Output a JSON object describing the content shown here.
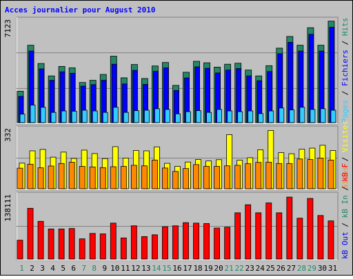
{
  "title": "Acces journalier pour August 2010",
  "colors": {
    "background": "#c0c0c0",
    "border": "#000000",
    "title": "#0000ff",
    "hits": "#228866",
    "files": "#0000ff",
    "pages": "#33ccff",
    "visits": "#ffff00",
    "sites": "#ff8800",
    "kbin": "#228866",
    "kbout": "#0000ff",
    "kbf": "#ff0000",
    "weekday": "#000000",
    "weekend": "#228866",
    "grid": "#808080"
  },
  "chart_data": [
    {
      "type": "bar",
      "panel": "hits",
      "ymax_label": "7123",
      "ymax": 7123,
      "side_labels": [
        {
          "text": "Hits",
          "color": "#228866"
        },
        {
          "text": "Fichiers",
          "color": "#0000ff"
        },
        {
          "text": "Pages",
          "color": "#33ccff"
        }
      ],
      "x": [
        "1",
        "2",
        "3",
        "4",
        "5",
        "6",
        "7",
        "8",
        "9",
        "10",
        "11",
        "12",
        "13",
        "14",
        "15",
        "16",
        "17",
        "18",
        "19",
        "20",
        "21",
        "22",
        "23",
        "24",
        "25",
        "26",
        "27",
        "28",
        "29",
        "30",
        "31"
      ],
      "weekend_days": [
        "1",
        "7",
        "8",
        "14",
        "15",
        "21",
        "22",
        "28",
        "29"
      ],
      "series": [
        {
          "name": "Hits",
          "color": "#228866",
          "values": [
            2150,
            5300,
            4050,
            3200,
            3850,
            3750,
            2750,
            2900,
            3300,
            4550,
            3070,
            3980,
            3020,
            3880,
            4120,
            2550,
            3450,
            4200,
            4100,
            3800,
            4000,
            4070,
            3600,
            3200,
            3900,
            5100,
            5900,
            5300,
            6500,
            5300,
            6950
          ]
        },
        {
          "name": "Fichiers",
          "color": "#0000ff",
          "values": [
            1800,
            4900,
            3680,
            2900,
            3480,
            3380,
            2500,
            2600,
            2900,
            4000,
            2650,
            3580,
            2620,
            3510,
            3750,
            2200,
            3060,
            3820,
            3720,
            3400,
            3600,
            3700,
            3200,
            2870,
            3500,
            4720,
            5500,
            4900,
            6050,
            4900,
            6530
          ]
        },
        {
          "name": "Pages",
          "color": "#33ccff",
          "values": [
            580,
            1200,
            1050,
            700,
            800,
            780,
            850,
            800,
            700,
            1050,
            700,
            820,
            850,
            950,
            900,
            600,
            750,
            820,
            700,
            900,
            800,
            750,
            800,
            620,
            800,
            1000,
            870,
            1050,
            900,
            950,
            850
          ]
        }
      ]
    },
    {
      "type": "bar",
      "panel": "visits",
      "ymax_label": "332",
      "ymax": 332,
      "side_labels": [
        {
          "text": "Visites",
          "color": "#ffff00"
        },
        {
          "text": "Sites",
          "color": "#ff8800"
        }
      ],
      "x": [
        "1",
        "2",
        "3",
        "4",
        "5",
        "6",
        "7",
        "8",
        "9",
        "10",
        "11",
        "12",
        "13",
        "14",
        "15",
        "16",
        "17",
        "18",
        "19",
        "20",
        "21",
        "22",
        "23",
        "24",
        "25",
        "26",
        "27",
        "28",
        "29",
        "30",
        "31"
      ],
      "series": [
        {
          "name": "Visites",
          "color": "#ffff00",
          "values": [
            142,
            210,
            218,
            175,
            203,
            168,
            214,
            195,
            167,
            233,
            170,
            212,
            210,
            232,
            141,
            124,
            148,
            162,
            154,
            161,
            300,
            158,
            172,
            216,
            323,
            200,
            194,
            219,
            225,
            241,
            212
          ]
        },
        {
          "name": "Sites",
          "color": "#ff8800",
          "values": [
            114,
            136,
            116,
            126,
            140,
            147,
            124,
            121,
            117,
            122,
            124,
            130,
            127,
            159,
            115,
            96,
            112,
            134,
            124,
            124,
            127,
            130,
            139,
            146,
            147,
            140,
            140,
            165,
            162,
            170,
            159
          ]
        }
      ]
    },
    {
      "type": "bar",
      "panel": "kbytes",
      "ymax_label": "138111",
      "ymax": 138111,
      "side_labels": [
        {
          "text": "kB F",
          "color": "#ff0000"
        },
        {
          "text": "kB In",
          "color": "#228866"
        },
        {
          "text": "kB Out",
          "color": "#0000ff"
        }
      ],
      "x": [
        "1",
        "2",
        "3",
        "4",
        "5",
        "6",
        "7",
        "8",
        "9",
        "10",
        "11",
        "12",
        "13",
        "14",
        "15",
        "16",
        "17",
        "18",
        "19",
        "20",
        "21",
        "22",
        "23",
        "24",
        "25",
        "26",
        "27",
        "28",
        "29",
        "30",
        "31"
      ],
      "series": [
        {
          "name": "kB F",
          "color": "#ff0000",
          "values": [
            42000,
            113000,
            84000,
            67000,
            67000,
            68000,
            45000,
            57000,
            56000,
            80000,
            47000,
            74000,
            50000,
            54000,
            72000,
            74000,
            81000,
            80000,
            79000,
            69000,
            71000,
            103000,
            121000,
            103000,
            125000,
            103000,
            138000,
            91000,
            135000,
            97000,
            85000
          ]
        }
      ]
    }
  ]
}
